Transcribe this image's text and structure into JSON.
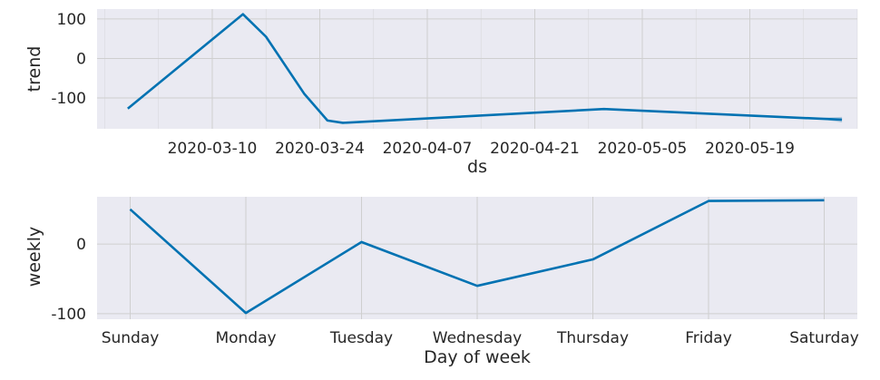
{
  "chart_data": [
    {
      "type": "line",
      "xlabel": "ds",
      "ylabel": "trend",
      "x_ticks": [
        "2020-03-10",
        "2020-03-24",
        "2020-04-07",
        "2020-04-21",
        "2020-05-05",
        "2020-05-19"
      ],
      "y_ticks": [
        100,
        0,
        -100
      ],
      "xlim": [
        "2020-02-24",
        "2020-06-02"
      ],
      "ylim": [
        -178,
        125
      ],
      "grid": true,
      "series": [
        {
          "x": [
            "2020-02-28",
            "2020-03-14",
            "2020-03-17",
            "2020-03-22",
            "2020-03-25",
            "2020-03-27",
            "2020-04-30",
            "2020-05-31"
          ],
          "y": [
            -127,
            112,
            55,
            -90,
            -157,
            -163,
            -128,
            -155
          ]
        }
      ],
      "uncertainty_end": {
        "x": "2020-05-31",
        "lower": -162,
        "upper": -148
      }
    },
    {
      "type": "line",
      "xlabel": "Day of week",
      "ylabel": "weekly",
      "categories": [
        "Sunday",
        "Monday",
        "Tuesday",
        "Wednesday",
        "Thursday",
        "Friday",
        "Saturday"
      ],
      "y_ticks": [
        0,
        -100
      ],
      "ylim": [
        -108,
        68
      ],
      "grid": true,
      "series": [
        {
          "values": [
            50,
            -99,
            3,
            -60,
            -22,
            62,
            63
          ]
        }
      ]
    }
  ],
  "colors": {
    "line": "#0072b2",
    "band": "#9cbad6",
    "plot_bg": "#eaeaf2",
    "grid": "#cfcfcf"
  }
}
